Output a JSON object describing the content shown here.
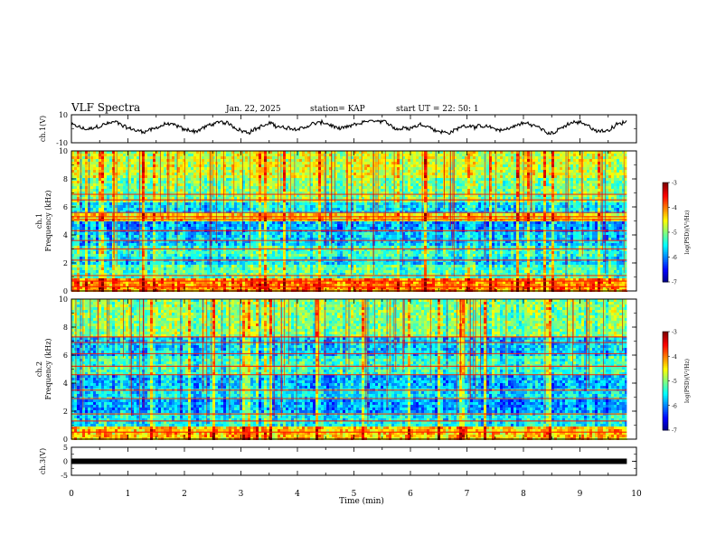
{
  "header": {
    "title": "VLF Spectra",
    "date": "Jan. 22, 2025",
    "station": "station= KAP",
    "start": "start  UT  =   22: 50: 1"
  },
  "chart_data": [
    {
      "type": "line",
      "name": "ch1-waveform",
      "ylabel": "ch.1(V)",
      "ylim": [
        -10,
        10
      ],
      "y_ticks": [
        "10",
        "-10"
      ],
      "xlim": [
        0,
        10
      ],
      "data_end_min": 9.83,
      "description_values_note": "noisy voltage trace oscillating about 0 V, roughly -4 to +6 V",
      "approx_range": [
        -4,
        6
      ]
    },
    {
      "type": "heatmap",
      "name": "ch1-spectrogram",
      "ylabel": "ch.1\nFrequency (kHz)",
      "ylabel_top": "ch.1",
      "ylabel_bottom": "Frequency (kHz)",
      "ylim": [
        0,
        10
      ],
      "y_ticks": [
        "0",
        "2",
        "4",
        "6",
        "8",
        "10"
      ],
      "xlim": [
        0,
        10
      ],
      "data_end_min": 9.83,
      "colorbar": {
        "label": "log(PSD)(V²/Hz)",
        "range": [
          -7,
          -3
        ],
        "ticks": [
          "-3",
          "-4",
          "-5",
          "-6",
          "-7"
        ]
      },
      "bands": [
        {
          "from_khz": 0.0,
          "to_khz": 1.0,
          "level": -4.0
        },
        {
          "from_khz": 1.0,
          "to_khz": 1.9,
          "level": -5.2
        },
        {
          "from_khz": 1.9,
          "to_khz": 2.4,
          "level": -5.6
        },
        {
          "from_khz": 2.4,
          "to_khz": 3.3,
          "level": -5.3
        },
        {
          "from_khz": 3.3,
          "to_khz": 4.1,
          "level": -5.7
        },
        {
          "from_khz": 4.1,
          "to_khz": 5.0,
          "level": -5.9
        },
        {
          "from_khz": 5.0,
          "to_khz": 5.5,
          "level": -4.4
        },
        {
          "from_khz": 5.5,
          "to_khz": 6.4,
          "level": -5.6
        },
        {
          "from_khz": 6.4,
          "to_khz": 8.0,
          "level": -5.0
        },
        {
          "from_khz": 8.0,
          "to_khz": 10.0,
          "level": -4.7
        }
      ],
      "lines_khz": [
        0.3,
        0.7,
        1.1,
        2.2,
        3.0,
        3.6,
        4.3,
        5.1,
        5.3,
        5.6,
        6.5,
        6.9
      ]
    },
    {
      "type": "heatmap",
      "name": "ch2-spectrogram",
      "ylabel": "ch.2\nFrequency (kHz)",
      "ylabel_top": "ch.2",
      "ylabel_bottom": "Frequency (kHz)",
      "ylim": [
        0,
        10
      ],
      "y_ticks": [
        "0",
        "2",
        "4",
        "6",
        "8",
        "10"
      ],
      "xlim": [
        0,
        10
      ],
      "data_end_min": 9.83,
      "colorbar": {
        "label": "log(PSD)(V²/Hz)",
        "range": [
          -7,
          -3
        ],
        "ticks": [
          "-3",
          "-4",
          "-5",
          "-6",
          "-7"
        ]
      },
      "bands": [
        {
          "from_khz": 0.0,
          "to_khz": 1.0,
          "level": -4.3
        },
        {
          "from_khz": 1.0,
          "to_khz": 1.9,
          "level": -5.5
        },
        {
          "from_khz": 1.9,
          "to_khz": 2.9,
          "level": -5.9
        },
        {
          "from_khz": 2.9,
          "to_khz": 3.6,
          "level": -5.6
        },
        {
          "from_khz": 3.6,
          "to_khz": 4.6,
          "level": -5.8
        },
        {
          "from_khz": 4.6,
          "to_khz": 6.0,
          "level": -5.3
        },
        {
          "from_khz": 6.0,
          "to_khz": 7.2,
          "level": -5.7
        },
        {
          "from_khz": 7.2,
          "to_khz": 10.0,
          "level": -5.0
        }
      ],
      "lines_khz": [
        0.5,
        1.3,
        1.8,
        2.9,
        3.5,
        4.6,
        5.2,
        6.1,
        6.9,
        7.3
      ]
    },
    {
      "type": "line",
      "name": "ch3-waveform",
      "ylabel": "ch.3(V)",
      "ylim": [
        -5,
        5
      ],
      "y_ticks": [
        "5",
        "0",
        "-5"
      ],
      "xlim": [
        0,
        10
      ],
      "data_end_min": 9.83,
      "constant_value": 0,
      "description_values_note": "flat thick black trace at 0 V"
    }
  ],
  "x_axis": {
    "label": "Time (min)",
    "ticks": [
      "0",
      "1",
      "2",
      "3",
      "4",
      "5",
      "6",
      "7",
      "8",
      "9",
      "10"
    ],
    "range": [
      0,
      10
    ]
  }
}
